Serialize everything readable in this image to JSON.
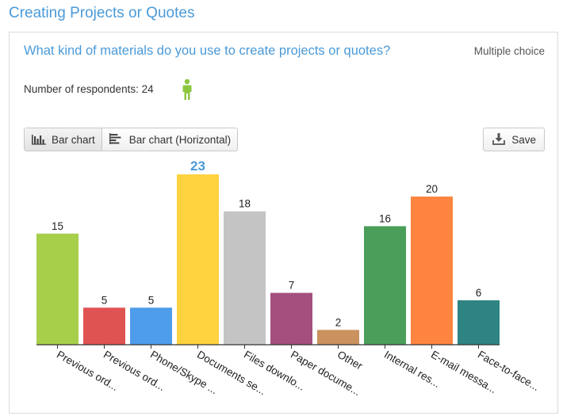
{
  "page": {
    "section_title": "Creating Projects or Quotes",
    "question": "What kind of materials do you use to create projects or quotes?",
    "question_type": "Multiple choice",
    "respondents_label": "Number of respondents: 24",
    "person_icon": "person-icon",
    "accent_color": "#4a9ad8"
  },
  "toolbar": {
    "bar_chart_label": "Bar chart",
    "bar_chart_horizontal_label": "Bar chart (Horizontal)",
    "save_label": "Save",
    "active_view": "Bar chart"
  },
  "chart_data": {
    "type": "bar",
    "title": "",
    "xlabel": "",
    "ylabel": "",
    "ylim": [
      0,
      23
    ],
    "grid": false,
    "highlight_max": true,
    "categories": [
      "Previous ord...",
      "Previous ord...",
      "Phone/Skype ...",
      "Documents se...",
      "Files downlo...",
      "Paper docume...",
      "Other",
      "Internal res...",
      "E-mail messa...",
      "Face-to-face..."
    ],
    "values": [
      15,
      5,
      5,
      23,
      18,
      7,
      2,
      16,
      20,
      6
    ],
    "colors": [
      "#a7cf4a",
      "#e05353",
      "#4d9deb",
      "#ffd23f",
      "#c4c4c4",
      "#a44f7e",
      "#c9925e",
      "#4a9e5a",
      "#ff8440",
      "#2e8482"
    ]
  }
}
